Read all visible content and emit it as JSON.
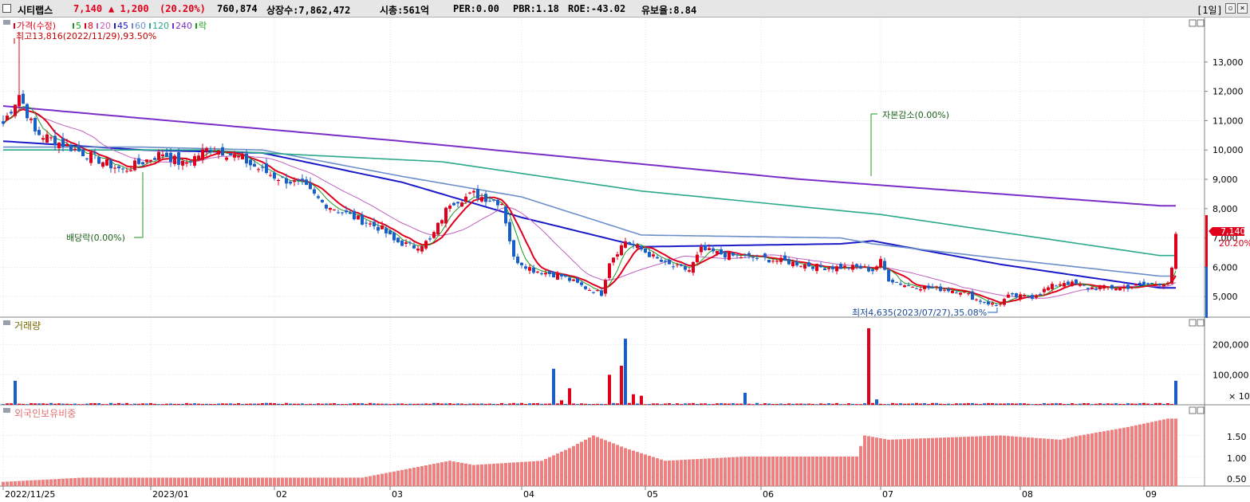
{
  "header": {
    "name": "시티랩스",
    "price": "7,140",
    "change": "▲ 1,200",
    "pct": "(20.20%)",
    "volume": "760,874",
    "listed": "상장수:7,862,472",
    "mktcap": "시총:561억",
    "per": "PER:0.00",
    "pbr": "PBR:1.18",
    "roe": "ROE:-43.02",
    "float": "유보율:8.84",
    "period": "[1일]"
  },
  "colors": {
    "up": "#e0001b",
    "down": "#1a5fc8",
    "ma5": "#1e9b1e",
    "ma8": "#e0001b",
    "ma20": "#c060c0",
    "ma45": "#1a1ac8",
    "ma60": "#6a8fc8",
    "ma120": "#2aa88a",
    "ma240": "#7b2fc8",
    "foreign": "#f08080"
  },
  "legend": {
    "items": [
      {
        "label": "가격(수정)",
        "color": "#e0001b"
      },
      {
        "label": "5",
        "color": "#1e9b1e"
      },
      {
        "label": "8",
        "color": "#e0001b"
      },
      {
        "label": "20",
        "color": "#c060c0"
      },
      {
        "label": "45",
        "color": "#1a1ac8"
      },
      {
        "label": "60",
        "color": "#6a8fc8"
      },
      {
        "label": "120",
        "color": "#2aa88a"
      },
      {
        "label": "240",
        "color": "#7b2fc8"
      },
      {
        "label": "락",
        "color": "#1e9b1e"
      }
    ]
  },
  "annotations": {
    "high": "최고13,816(2022/11/29),93.50%",
    "low": "최저4,635(2023/07/27),35.08%",
    "dividend": "배당락(0.00%)",
    "capital": "자본감소(0.00%)",
    "price_tag": "7,140",
    "price_tag_pct": "20.20%"
  },
  "volume_panel": {
    "title": "거래량",
    "ticks": [
      "200,000",
      "100,000"
    ],
    "unit": "× 10"
  },
  "foreign_panel": {
    "title": "외국인보유비중",
    "ticks": [
      "1.50",
      "1.00",
      "0.50"
    ]
  },
  "x_labels": [
    "2022/11/25",
    "2023/01",
    "02",
    "03",
    "04",
    "05",
    "06",
    "07",
    "08",
    "09"
  ],
  "chart_data": [
    {
      "type": "candlestick",
      "title": "가격(수정)",
      "y_ticks": [
        5000,
        6000,
        7000,
        8000,
        9000,
        10000,
        11000,
        12000,
        13000
      ],
      "ylim": [
        4300,
        14300
      ],
      "high": {
        "value": 13816,
        "date": "2022/11/29"
      },
      "low": {
        "value": 4635,
        "date": "2023/07/27"
      },
      "last": 7140,
      "close_path": [
        [
          0,
          10900
        ],
        [
          4,
          11900
        ],
        [
          8,
          10600
        ],
        [
          15,
          10200
        ],
        [
          25,
          9600
        ],
        [
          30,
          9300
        ],
        [
          35,
          9600
        ],
        [
          40,
          9900
        ],
        [
          45,
          9500
        ],
        [
          52,
          10100
        ],
        [
          60,
          9700
        ],
        [
          62,
          9500
        ],
        [
          68,
          9100
        ],
        [
          75,
          8800
        ],
        [
          80,
          8200
        ],
        [
          88,
          7700
        ],
        [
          95,
          7300
        ],
        [
          98,
          6900
        ],
        [
          103,
          6700
        ],
        [
          107,
          6900
        ],
        [
          112,
          8200
        ],
        [
          118,
          8500
        ],
        [
          120,
          8400
        ],
        [
          125,
          8200
        ],
        [
          128,
          6300
        ],
        [
          133,
          5900
        ],
        [
          140,
          5700
        ],
        [
          146,
          5300
        ],
        [
          150,
          5100
        ],
        [
          152,
          6200
        ],
        [
          156,
          6900
        ],
        [
          160,
          6600
        ],
        [
          166,
          6100
        ],
        [
          172,
          5900
        ],
        [
          175,
          6600
        ],
        [
          182,
          6400
        ],
        [
          190,
          6300
        ],
        [
          196,
          6200
        ],
        [
          205,
          6000
        ],
        [
          214,
          6000
        ],
        [
          218,
          5900
        ],
        [
          220,
          6200
        ],
        [
          222,
          5600
        ],
        [
          226,
          5400
        ],
        [
          232,
          5300
        ],
        [
          240,
          5200
        ],
        [
          244,
          4900
        ],
        [
          249,
          4700
        ],
        [
          252,
          5000
        ],
        [
          258,
          5000
        ],
        [
          262,
          5300
        ],
        [
          266,
          5500
        ],
        [
          272,
          5300
        ],
        [
          280,
          5300
        ],
        [
          286,
          5400
        ],
        [
          292,
          5500
        ],
        [
          293,
          5900
        ],
        [
          294,
          7140
        ]
      ],
      "ma": [
        {
          "name": "45",
          "points": [
            [
              0,
              10300
            ],
            [
              35,
              10000
            ],
            [
              65,
              9900
            ],
            [
              100,
              8900
            ],
            [
              130,
              7700
            ],
            [
              160,
              6700
            ],
            [
              210,
              6800
            ],
            [
              218,
              6900
            ],
            [
              250,
              6100
            ],
            [
              290,
              5300
            ]
          ]
        },
        {
          "name": "60",
          "points": [
            [
              0,
              10100
            ],
            [
              35,
              10100
            ],
            [
              65,
              10000
            ],
            [
              100,
              9100
            ],
            [
              130,
              8400
            ],
            [
              160,
              7100
            ],
            [
              210,
              7000
            ],
            [
              218,
              6800
            ],
            [
              250,
              6300
            ],
            [
              290,
              5700
            ]
          ]
        },
        {
          "name": "120",
          "points": [
            [
              0,
              10000
            ],
            [
              50,
              10000
            ],
            [
              110,
              9600
            ],
            [
              160,
              8600
            ],
            [
              220,
              7800
            ],
            [
              290,
              6400
            ]
          ]
        },
        {
          "name": "240",
          "points": [
            [
              0,
              11500
            ],
            [
              100,
              10300
            ],
            [
              200,
              9000
            ],
            [
              290,
              8100
            ]
          ]
        }
      ]
    },
    {
      "type": "bar",
      "title": "거래량",
      "unit": "× 10",
      "y_ticks": [
        100000,
        200000
      ],
      "ylim": [
        0,
        260000
      ],
      "spikes": [
        [
          3,
          80000
        ],
        [
          66,
          6000
        ],
        [
          138,
          120000
        ],
        [
          140,
          15000
        ],
        [
          142,
          55000
        ],
        [
          152,
          100000
        ],
        [
          155,
          130000
        ],
        [
          156,
          220000
        ],
        [
          158,
          35000
        ],
        [
          160,
          30000
        ],
        [
          186,
          40000
        ],
        [
          217,
          255000
        ],
        [
          219,
          18000
        ],
        [
          294,
          80000
        ]
      ]
    },
    {
      "type": "bar",
      "title": "외국인보유비중",
      "y_ticks": [
        0.5,
        1.0,
        1.5
      ],
      "ylim": [
        0.3,
        2.0
      ],
      "levels": [
        [
          0,
          0.4
        ],
        [
          20,
          0.5
        ],
        [
          60,
          0.5
        ],
        [
          90,
          0.5
        ],
        [
          112,
          0.9
        ],
        [
          118,
          0.8
        ],
        [
          135,
          0.9
        ],
        [
          142,
          1.2
        ],
        [
          148,
          1.5
        ],
        [
          156,
          1.2
        ],
        [
          166,
          0.9
        ],
        [
          186,
          1.0
        ],
        [
          214,
          1.0
        ],
        [
          216,
          1.5
        ],
        [
          222,
          1.4
        ],
        [
          250,
          1.5
        ],
        [
          265,
          1.4
        ],
        [
          270,
          1.5
        ],
        [
          282,
          1.7
        ],
        [
          292,
          1.9
        ],
        [
          294,
          1.9
        ]
      ]
    }
  ]
}
